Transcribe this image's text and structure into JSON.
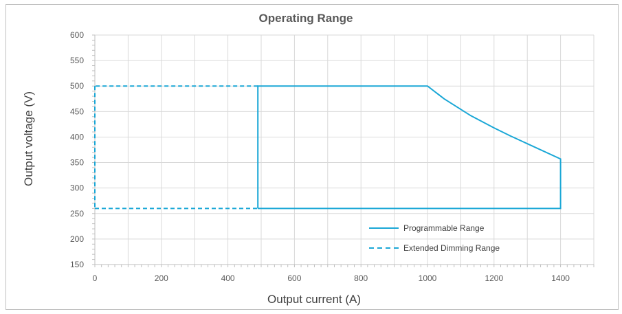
{
  "chart_data": {
    "type": "line",
    "title": "Operating Range",
    "xlabel": "Output current (A)",
    "ylabel": "Output voltage (V)",
    "xlim": [
      0,
      1500
    ],
    "ylim": [
      150,
      600
    ],
    "x_ticks": [
      0,
      200,
      400,
      600,
      800,
      1000,
      1200,
      1400
    ],
    "y_ticks": [
      150,
      200,
      250,
      300,
      350,
      400,
      450,
      500,
      550,
      600
    ],
    "grid": true,
    "legend_position": "bottom-right",
    "series_color": "#1aa7d6",
    "series": [
      {
        "name": "Programmable Range",
        "style": "solid",
        "points": [
          [
            490,
            260
          ],
          [
            490,
            500
          ],
          [
            1000,
            500
          ],
          [
            1050,
            475
          ],
          [
            1130,
            442
          ],
          [
            1200,
            418
          ],
          [
            1250,
            402
          ],
          [
            1400,
            357
          ],
          [
            1400,
            260
          ],
          [
            490,
            260
          ]
        ]
      },
      {
        "name": "Extended Dimming Range",
        "style": "dashed",
        "segments": [
          [
            [
              490,
              500
            ],
            [
              0,
              500
            ]
          ],
          [
            [
              0,
              500
            ],
            [
              0,
              260
            ]
          ],
          [
            [
              0,
              260
            ],
            [
              490,
              260
            ]
          ]
        ]
      }
    ]
  }
}
